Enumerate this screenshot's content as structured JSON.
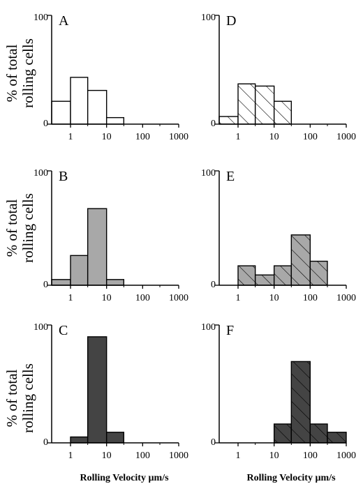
{
  "figure": {
    "ylabel_line1": "% of total",
    "ylabel_line2": "rolling cells",
    "xlabel": "Rolling Velocity µm/s"
  },
  "colors": {
    "white": "#ffffff",
    "gray": "#a8a8a8",
    "dark": "#444444",
    "stroke": "#000000"
  },
  "chart_data": [
    {
      "type": "bar",
      "panel": "A",
      "fill": "white",
      "hatch": false,
      "ylim": [
        0,
        100
      ],
      "y_ticks": [
        "0",
        "100"
      ],
      "x_ticks": [
        "1",
        "10",
        "100",
        "1000"
      ],
      "bins": [
        [
          0.3,
          1,
          21
        ],
        [
          1,
          3,
          43
        ],
        [
          3,
          10,
          31
        ],
        [
          10,
          30,
          6
        ]
      ]
    },
    {
      "type": "bar",
      "panel": "D",
      "fill": "white",
      "hatch": true,
      "ylim": [
        0,
        100
      ],
      "y_ticks": [
        "0",
        "100"
      ],
      "x_ticks": [
        "1",
        "10",
        "100",
        "1000"
      ],
      "bins": [
        [
          0.3,
          1,
          7
        ],
        [
          1,
          3,
          37
        ],
        [
          3,
          10,
          35
        ],
        [
          10,
          30,
          21
        ]
      ]
    },
    {
      "type": "bar",
      "panel": "B",
      "fill": "gray",
      "hatch": false,
      "ylim": [
        0,
        100
      ],
      "y_ticks": [
        "0",
        "100"
      ],
      "x_ticks": [
        "1",
        "10",
        "100",
        "1000"
      ],
      "bins": [
        [
          0.3,
          1,
          5
        ],
        [
          1,
          3,
          26
        ],
        [
          3,
          10,
          67
        ],
        [
          10,
          30,
          5
        ]
      ]
    },
    {
      "type": "bar",
      "panel": "E",
      "fill": "gray",
      "hatch": true,
      "ylim": [
        0,
        100
      ],
      "y_ticks": [
        "0",
        "100"
      ],
      "x_ticks": [
        "1",
        "10",
        "100",
        "1000"
      ],
      "bins": [
        [
          1,
          3,
          17
        ],
        [
          3,
          10,
          9
        ],
        [
          10,
          30,
          17
        ],
        [
          30,
          100,
          44
        ],
        [
          100,
          300,
          21
        ]
      ]
    },
    {
      "type": "bar",
      "panel": "C",
      "fill": "dark",
      "hatch": false,
      "ylim": [
        0,
        100
      ],
      "y_ticks": [
        "0",
        "100"
      ],
      "x_ticks": [
        "1",
        "10",
        "100",
        "1000"
      ],
      "bins": [
        [
          1,
          3,
          5
        ],
        [
          3,
          10,
          90
        ],
        [
          10,
          30,
          9
        ]
      ]
    },
    {
      "type": "bar",
      "panel": "F",
      "fill": "dark",
      "hatch": true,
      "ylim": [
        0,
        100
      ],
      "y_ticks": [
        "0",
        "100"
      ],
      "x_ticks": [
        "1",
        "10",
        "100",
        "1000"
      ],
      "bins": [
        [
          10,
          30,
          16
        ],
        [
          30,
          100,
          69
        ],
        [
          100,
          300,
          16
        ],
        [
          300,
          1000,
          9
        ]
      ]
    }
  ]
}
